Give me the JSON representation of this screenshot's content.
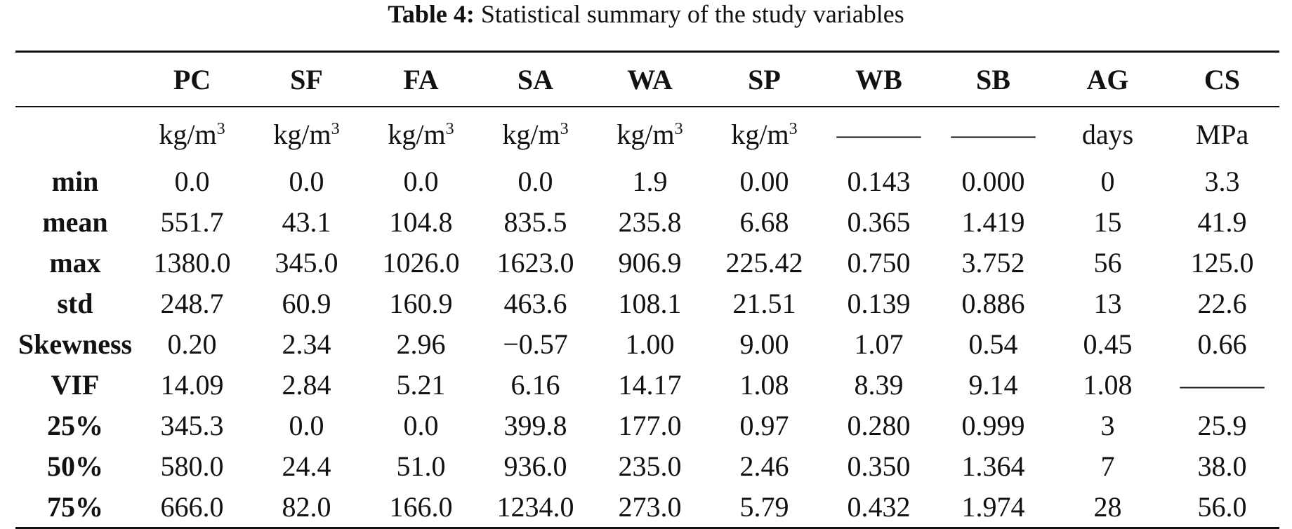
{
  "caption": {
    "label": "Table 4:",
    "text": " Statistical summary of the study variables"
  },
  "table": {
    "columns": [
      "",
      "PC",
      "SF",
      "FA",
      "SA",
      "WA",
      "SP",
      "WB",
      "SB",
      "AG",
      "CS"
    ],
    "units": [
      {
        "base": "kg/m",
        "sup": "3"
      },
      {
        "base": "kg/m",
        "sup": "3"
      },
      {
        "base": "kg/m",
        "sup": "3"
      },
      {
        "base": "kg/m",
        "sup": "3"
      },
      {
        "base": "kg/m",
        "sup": "3"
      },
      {
        "base": "kg/m",
        "sup": "3"
      },
      {
        "base": "———",
        "sup": ""
      },
      {
        "base": "———",
        "sup": ""
      },
      {
        "base": "days",
        "sup": ""
      },
      {
        "base": "MPa",
        "sup": ""
      }
    ],
    "rows": [
      {
        "label": "min",
        "values": [
          "0.0",
          "0.0",
          "0.0",
          "0.0",
          "1.9",
          "0.00",
          "0.143",
          "0.000",
          "0",
          "3.3"
        ]
      },
      {
        "label": "mean",
        "values": [
          "551.7",
          "43.1",
          "104.8",
          "835.5",
          "235.8",
          "6.68",
          "0.365",
          "1.419",
          "15",
          "41.9"
        ]
      },
      {
        "label": "max",
        "values": [
          "1380.0",
          "345.0",
          "1026.0",
          "1623.0",
          "906.9",
          "225.42",
          "0.750",
          "3.752",
          "56",
          "125.0"
        ]
      },
      {
        "label": "std",
        "values": [
          "248.7",
          "60.9",
          "160.9",
          "463.6",
          "108.1",
          "21.51",
          "0.139",
          "0.886",
          "13",
          "22.6"
        ]
      },
      {
        "label": "Skewness",
        "values": [
          "0.20",
          "2.34",
          "2.96",
          "−0.57",
          "1.00",
          "9.00",
          "1.07",
          "0.54",
          "0.45",
          "0.66"
        ]
      },
      {
        "label": "VIF",
        "values": [
          "14.09",
          "2.84",
          "5.21",
          "6.16",
          "14.17",
          "1.08",
          "8.39",
          "9.14",
          "1.08",
          "———"
        ]
      },
      {
        "label": "25%",
        "values": [
          "345.3",
          "0.0",
          "0.0",
          "399.8",
          "177.0",
          "0.97",
          "0.280",
          "0.999",
          "3",
          "25.9"
        ]
      },
      {
        "label": "50%",
        "values": [
          "580.0",
          "24.4",
          "51.0",
          "936.0",
          "235.0",
          "2.46",
          "0.350",
          "1.364",
          "7",
          "38.0"
        ]
      },
      {
        "label": "75%",
        "values": [
          "666.0",
          "82.0",
          "166.0",
          "1234.0",
          "273.0",
          "5.79",
          "0.432",
          "1.974",
          "28",
          "56.0"
        ]
      }
    ]
  }
}
